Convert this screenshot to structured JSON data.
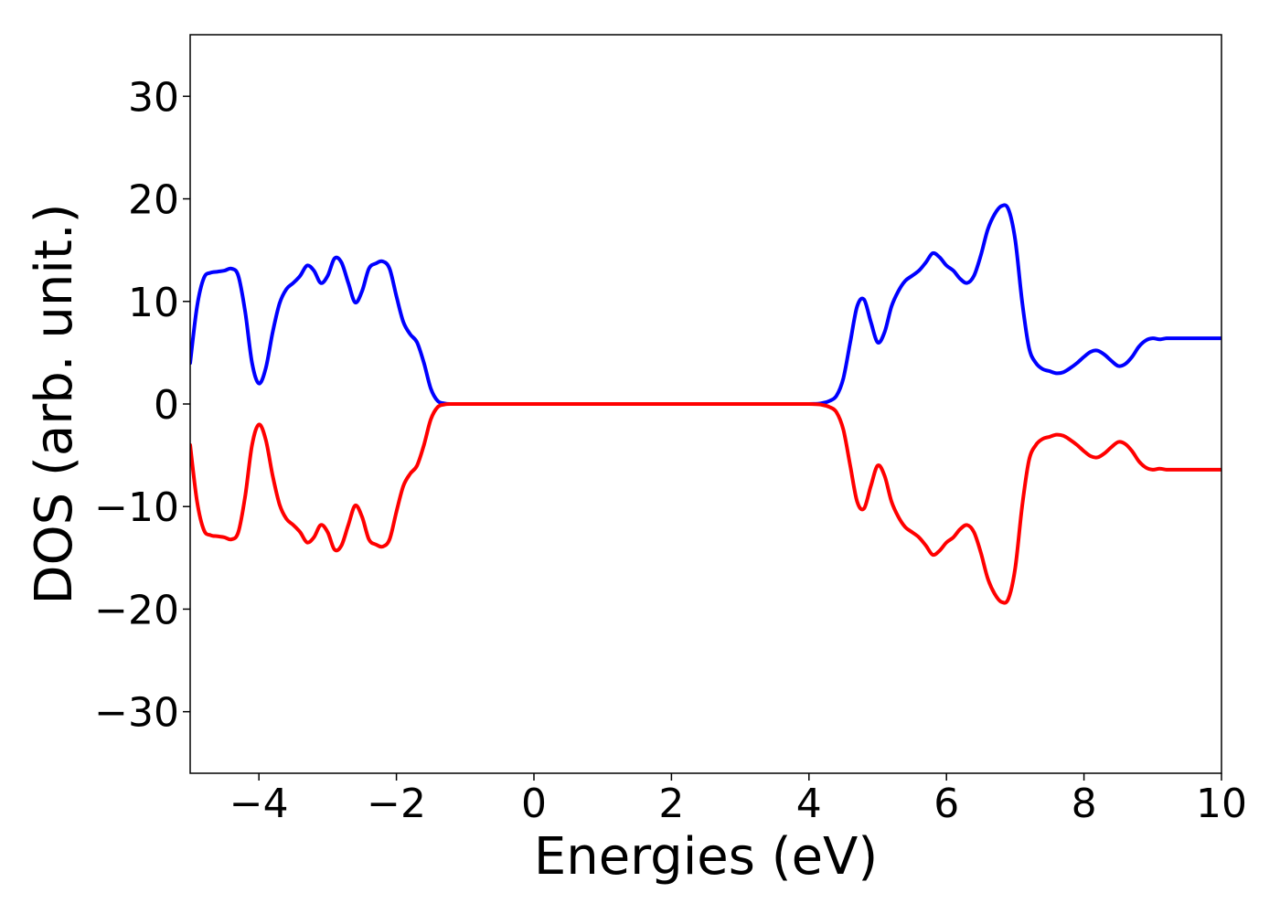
{
  "chart_data": {
    "type": "line",
    "title": "",
    "xlabel": "Energies (eV)",
    "ylabel": "DOS (arb. unit.)",
    "xlim": [
      -5,
      10
    ],
    "ylim": [
      -36,
      36
    ],
    "xticks": [
      -4,
      -2,
      0,
      2,
      4,
      6,
      8,
      10
    ],
    "xtick_labels": [
      "−4",
      "−2",
      "0",
      "2",
      "4",
      "6",
      "8",
      "10"
    ],
    "yticks": [
      -30,
      -20,
      -10,
      0,
      10,
      20,
      30
    ],
    "ytick_labels": [
      "−30",
      "−20",
      "−10",
      "0",
      "10",
      "20",
      "30"
    ],
    "grid": false,
    "legend": "none",
    "series": [
      {
        "color": "#0000ff",
        "x": [
          -5.0,
          -4.9,
          -4.8,
          -4.7,
          -4.6,
          -4.5,
          -4.4,
          -4.3,
          -4.2,
          -4.1,
          -4.0,
          -3.9,
          -3.8,
          -3.7,
          -3.6,
          -3.5,
          -3.4,
          -3.3,
          -3.2,
          -3.1,
          -3.0,
          -2.9,
          -2.8,
          -2.7,
          -2.6,
          -2.5,
          -2.4,
          -2.3,
          -2.2,
          -2.1,
          -2.0,
          -1.9,
          -1.8,
          -1.7,
          -1.6,
          -1.5,
          -1.4,
          -1.3,
          -1.2,
          -1.1,
          -1.0,
          -0.9,
          -0.8,
          -0.7,
          -0.6,
          -0.5,
          0.0,
          1.0,
          2.0,
          3.0,
          4.0,
          4.2,
          4.3,
          4.4,
          4.5,
          4.6,
          4.7,
          4.8,
          4.9,
          5.0,
          5.1,
          5.2,
          5.3,
          5.4,
          5.5,
          5.6,
          5.7,
          5.8,
          5.9,
          6.0,
          6.1,
          6.2,
          6.3,
          6.4,
          6.5,
          6.6,
          6.7,
          6.8,
          6.9,
          7.0,
          7.1,
          7.2,
          7.3,
          7.4,
          7.5,
          7.6,
          7.7,
          7.8,
          7.9,
          8.0,
          8.1,
          8.2,
          8.3,
          8.4,
          8.5,
          8.6,
          8.7,
          8.8,
          8.9,
          9.0,
          9.1,
          9.2,
          9.3,
          9.4,
          9.5,
          9.6,
          9.7,
          9.8,
          9.9,
          10.0
        ],
        "y": [
          4.0,
          9.5,
          12.3,
          12.8,
          12.9,
          13.0,
          13.2,
          12.5,
          9.0,
          4.0,
          2.0,
          3.5,
          7.0,
          9.8,
          11.2,
          11.8,
          12.5,
          13.5,
          13.0,
          11.8,
          12.5,
          14.2,
          13.8,
          11.8,
          9.9,
          11.0,
          13.2,
          13.7,
          13.9,
          13.2,
          10.5,
          8.0,
          6.8,
          6.0,
          4.0,
          1.5,
          0.3,
          0.05,
          0.0,
          0.0,
          0.0,
          0.0,
          0.0,
          0.0,
          0.0,
          0.0,
          0.0,
          0.0,
          0.0,
          0.0,
          0.0,
          0.1,
          0.3,
          0.8,
          2.5,
          6.0,
          9.5,
          10.2,
          8.0,
          6.0,
          7.0,
          9.5,
          11.0,
          12.0,
          12.5,
          13.0,
          13.8,
          14.7,
          14.3,
          13.5,
          13.0,
          12.2,
          11.8,
          12.5,
          14.5,
          17.0,
          18.5,
          19.3,
          19.0,
          16.0,
          10.0,
          5.5,
          4.0,
          3.4,
          3.2,
          3.0,
          3.1,
          3.5,
          4.0,
          4.6,
          5.1,
          5.2,
          4.8,
          4.2,
          3.7,
          3.9,
          4.6,
          5.6,
          6.2,
          6.4,
          6.3,
          6.4,
          6.4,
          6.4,
          6.4,
          6.4,
          6.4,
          6.4,
          6.4,
          6.4
        ]
      },
      {
        "color": "#ff0000",
        "x": [
          -5.0,
          -4.9,
          -4.8,
          -4.7,
          -4.6,
          -4.5,
          -4.4,
          -4.3,
          -4.2,
          -4.1,
          -4.0,
          -3.9,
          -3.8,
          -3.7,
          -3.6,
          -3.5,
          -3.4,
          -3.3,
          -3.2,
          -3.1,
          -3.0,
          -2.9,
          -2.8,
          -2.7,
          -2.6,
          -2.5,
          -2.4,
          -2.3,
          -2.2,
          -2.1,
          -2.0,
          -1.9,
          -1.8,
          -1.7,
          -1.6,
          -1.5,
          -1.4,
          -1.3,
          -1.2,
          -1.1,
          -1.0,
          -0.9,
          -0.8,
          -0.7,
          -0.6,
          -0.5,
          0.0,
          1.0,
          2.0,
          3.0,
          4.0,
          4.2,
          4.3,
          4.4,
          4.5,
          4.6,
          4.7,
          4.8,
          4.9,
          5.0,
          5.1,
          5.2,
          5.3,
          5.4,
          5.5,
          5.6,
          5.7,
          5.8,
          5.9,
          6.0,
          6.1,
          6.2,
          6.3,
          6.4,
          6.5,
          6.6,
          6.7,
          6.8,
          6.9,
          7.0,
          7.1,
          7.2,
          7.3,
          7.4,
          7.5,
          7.6,
          7.7,
          7.8,
          7.9,
          8.0,
          8.1,
          8.2,
          8.3,
          8.4,
          8.5,
          8.6,
          8.7,
          8.8,
          8.9,
          9.0,
          9.1,
          9.2,
          9.3,
          9.4,
          9.5,
          9.6,
          9.7,
          9.8,
          9.9,
          10.0
        ],
        "y": [
          -4.0,
          -9.5,
          -12.3,
          -12.8,
          -12.9,
          -13.0,
          -13.2,
          -12.5,
          -9.0,
          -4.0,
          -2.0,
          -3.5,
          -7.0,
          -9.8,
          -11.2,
          -11.8,
          -12.5,
          -13.5,
          -13.0,
          -11.8,
          -12.5,
          -14.2,
          -13.8,
          -11.8,
          -9.9,
          -11.0,
          -13.2,
          -13.7,
          -13.9,
          -13.2,
          -10.5,
          -8.0,
          -6.8,
          -6.0,
          -4.0,
          -1.5,
          -0.3,
          -0.05,
          0.0,
          0.0,
          0.0,
          0.0,
          0.0,
          0.0,
          0.0,
          0.0,
          0.0,
          0.0,
          0.0,
          0.0,
          0.0,
          -0.1,
          -0.3,
          -0.8,
          -2.5,
          -6.0,
          -9.5,
          -10.2,
          -8.0,
          -6.0,
          -7.0,
          -9.5,
          -11.0,
          -12.0,
          -12.5,
          -13.0,
          -13.8,
          -14.7,
          -14.3,
          -13.5,
          -13.0,
          -12.2,
          -11.8,
          -12.5,
          -14.5,
          -17.0,
          -18.5,
          -19.3,
          -19.0,
          -16.0,
          -10.0,
          -5.5,
          -4.0,
          -3.4,
          -3.2,
          -3.0,
          -3.1,
          -3.5,
          -4.0,
          -4.6,
          -5.1,
          -5.2,
          -4.8,
          -4.2,
          -3.7,
          -3.9,
          -4.6,
          -5.6,
          -6.2,
          -6.4,
          -6.3,
          -6.4,
          -6.4,
          -6.4,
          -6.4,
          -6.4,
          -6.4,
          -6.4,
          -6.4,
          -6.4
        ]
      }
    ]
  }
}
